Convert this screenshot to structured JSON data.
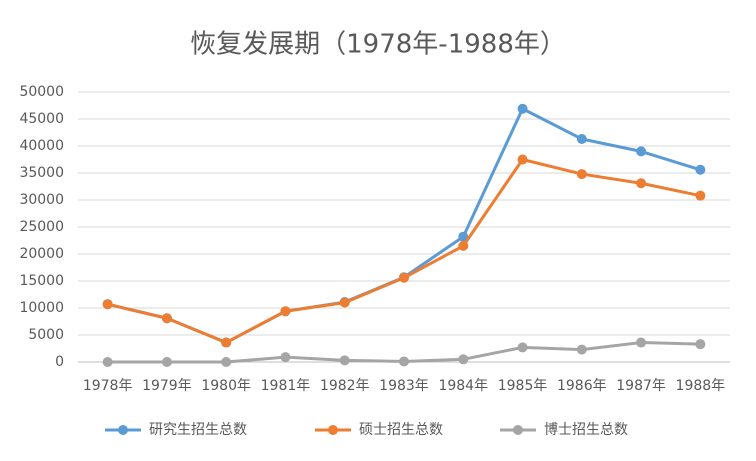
{
  "chart_data": {
    "type": "line",
    "title": "恢复发展期（1978年-1988年）",
    "categories": [
      "1978年",
      "1979年",
      "1980年",
      "1981年",
      "1982年",
      "1983年",
      "1984年",
      "1985年",
      "1986年",
      "1987年",
      "1988年"
    ],
    "series": [
      {
        "name": "研究生招生总数",
        "color": "#5b9bd5",
        "values": [
          10700,
          8100,
          3600,
          9400,
          11100,
          15700,
          23200,
          46900,
          41300,
          39000,
          35600
        ]
      },
      {
        "name": "硕士招生总数",
        "color": "#ed7d31",
        "values": [
          10700,
          8100,
          3600,
          9400,
          11000,
          15600,
          21500,
          37500,
          34800,
          33100,
          30800
        ]
      },
      {
        "name": "博士招生总数",
        "color": "#a5a5a5",
        "values": [
          0,
          0,
          0,
          900,
          300,
          100,
          500,
          2700,
          2300,
          3600,
          3300
        ]
      }
    ],
    "ylim": [
      0,
      50000
    ],
    "yticks": [
      0,
      5000,
      10000,
      15000,
      20000,
      25000,
      30000,
      35000,
      40000,
      45000,
      50000
    ],
    "grid": true
  }
}
